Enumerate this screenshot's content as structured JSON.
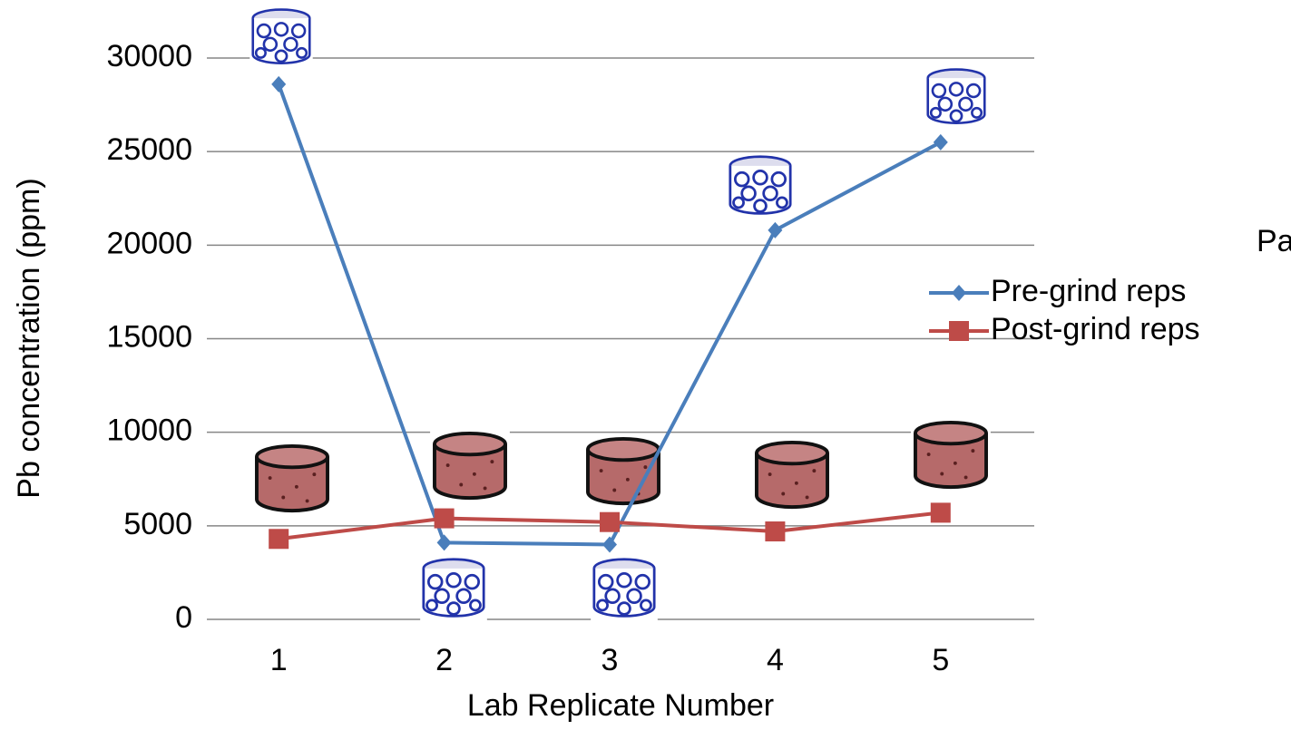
{
  "chart_data": {
    "type": "line",
    "x_label": "Lab Replicate Number",
    "y_label": "Pb concentration (ppm)",
    "legend_title": "Pa",
    "categories": [
      "1",
      "2",
      "3",
      "4",
      "5"
    ],
    "series": [
      {
        "name": "Pre-grind reps",
        "color": "#4a7ebb",
        "marker": "diamond",
        "values": [
          28600,
          4100,
          4000,
          20800,
          25500
        ]
      },
      {
        "name": "Post-grind reps",
        "color": "#be4b48",
        "marker": "square",
        "values": [
          4300,
          5400,
          5200,
          4700,
          5700
        ]
      }
    ],
    "ylim": [
      0,
      30000
    ],
    "yticks": [
      0,
      5000,
      10000,
      15000,
      20000,
      25000,
      30000
    ],
    "grid": true,
    "legend": "right"
  }
}
